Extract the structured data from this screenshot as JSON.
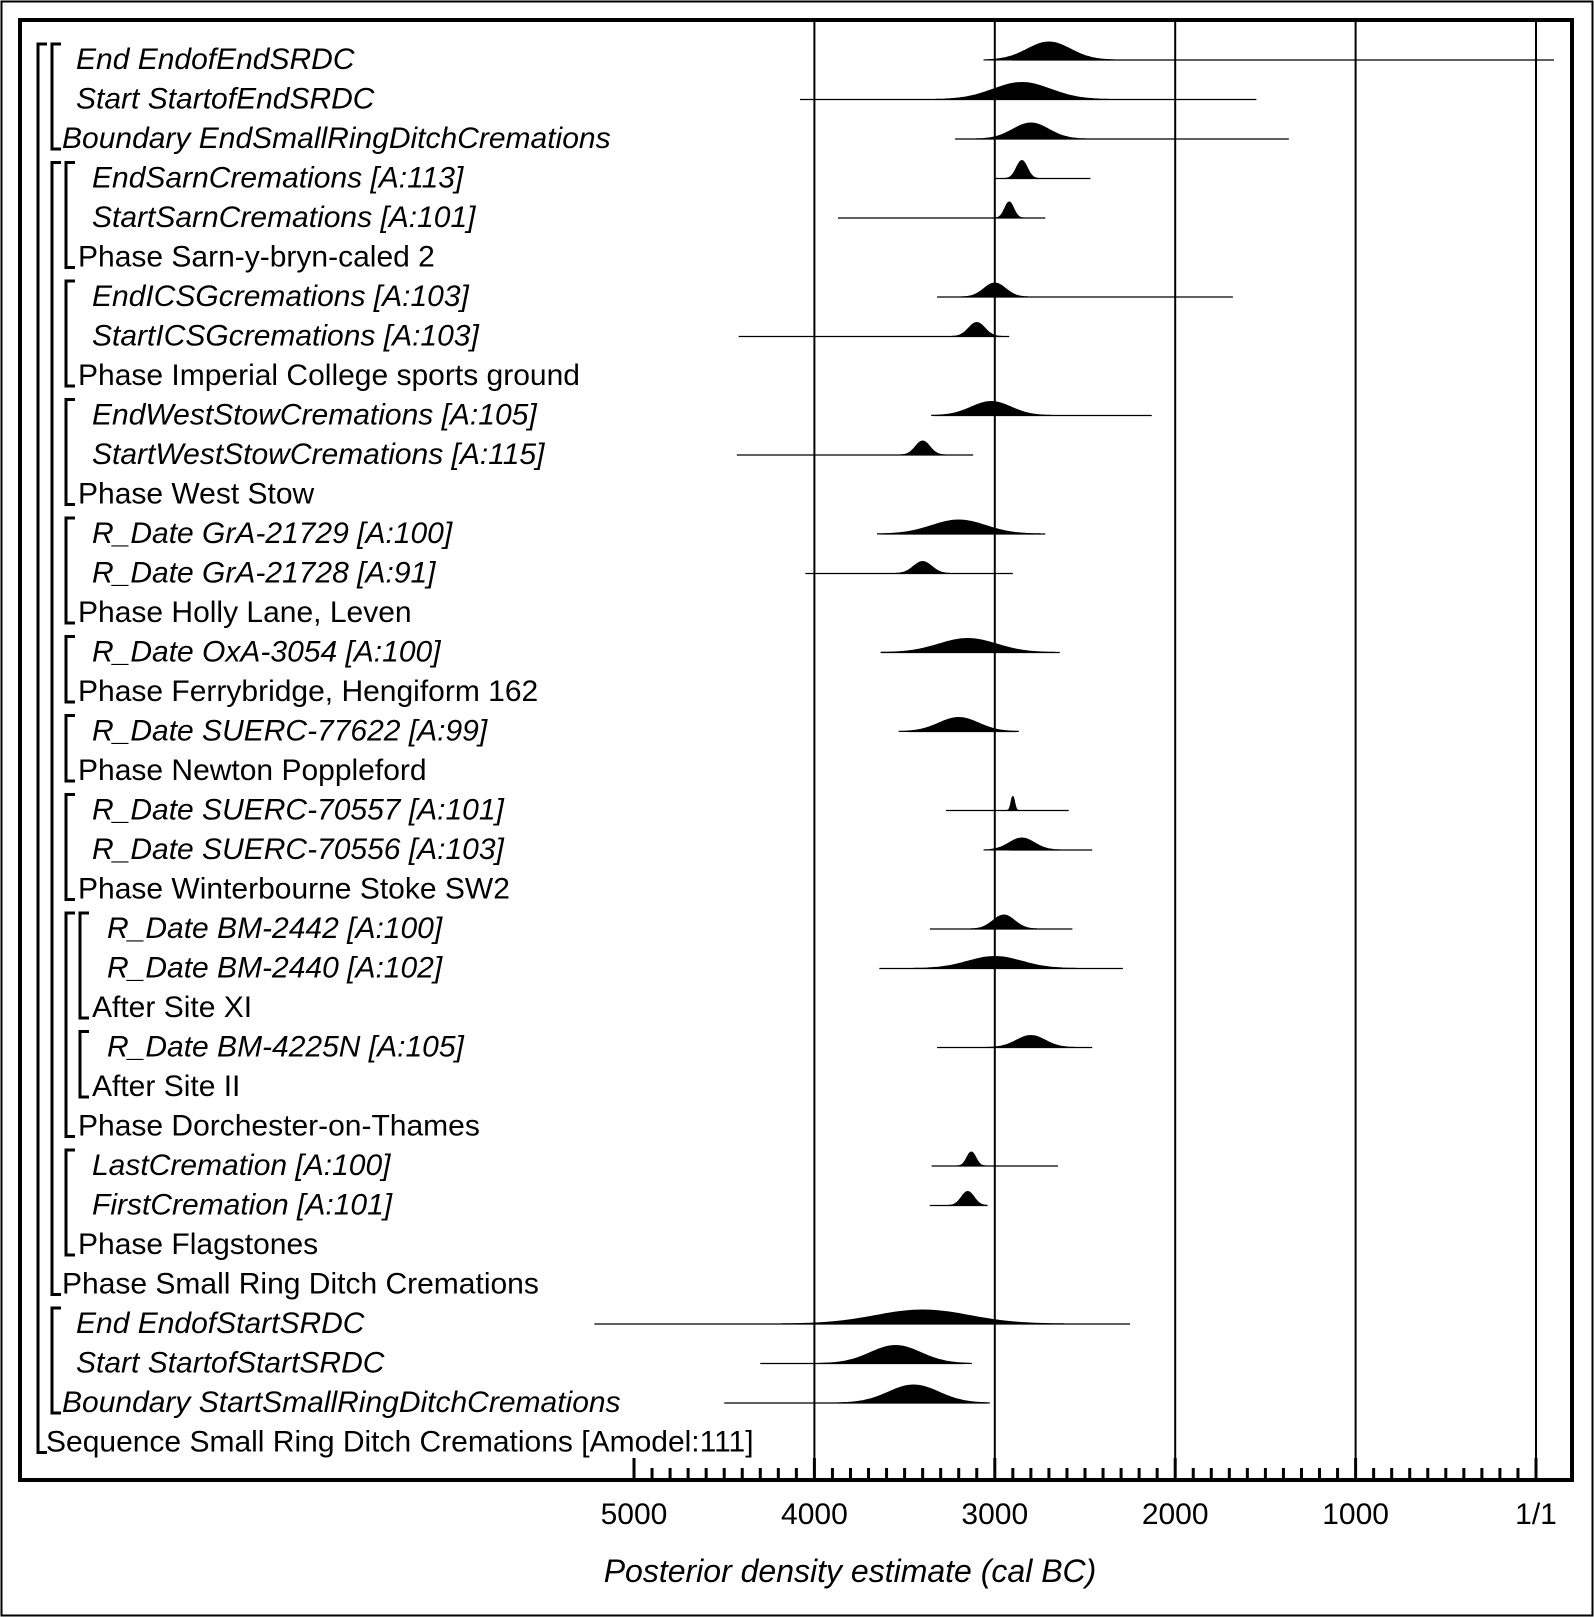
{
  "chart_data": {
    "type": "ridgeline",
    "xlabel": "Posterior density estimate (cal BC)",
    "x_ticks": [
      "5000",
      "4000",
      "3000",
      "2000",
      "1000",
      "1/1"
    ],
    "x_tick_values": [
      5000,
      4000,
      3000,
      2000,
      1000,
      0
    ],
    "xlim": [
      5000,
      0
    ],
    "grid": "vertical lines at 1000-year intervals",
    "rows": [
      {
        "label": "End EndofEndSRDC",
        "italic": true,
        "range": [
          2900,
          -100
        ],
        "peak": 2700,
        "width": 120,
        "height": 18,
        "filled": true
      },
      {
        "label": "Start StartofEndSRDC",
        "italic": true,
        "range": [
          4080,
          1550
        ],
        "peak": 2850,
        "width": 160,
        "height": 17,
        "filled": true
      },
      {
        "label": "Boundary EndSmallRingDitchCremations",
        "italic": true,
        "range": [
          3220,
          1370
        ],
        "peak": 2800,
        "width": 100,
        "height": 16,
        "filled": true
      },
      {
        "label": "EndSarnCremations [A:113]",
        "italic": true,
        "range": [
          3000,
          2470
        ],
        "peak": 2850,
        "width": 30,
        "height": 18,
        "filled": true
      },
      {
        "label": "StartSarnCremations [A:101]",
        "italic": true,
        "range": [
          3870,
          2720
        ],
        "peak": 2920,
        "width": 25,
        "height": 16,
        "filled": true
      },
      {
        "label": "Phase Sarn-y-bryn-caled 2",
        "italic": false
      },
      {
        "label": "EndICSGcremations [A:103]",
        "italic": true,
        "range": [
          3320,
          1680
        ],
        "peak": 3000,
        "width": 60,
        "height": 14,
        "filled": true
      },
      {
        "label": "StartICSGcremations [A:103]",
        "italic": true,
        "range": [
          4420,
          2920
        ],
        "peak": 3100,
        "width": 45,
        "height": 14,
        "filled": true
      },
      {
        "label": "Phase Imperial College sports ground",
        "italic": false
      },
      {
        "label": "EndWestStowCremations [A:105]",
        "italic": true,
        "range": [
          3340,
          2130
        ],
        "peak": 3020,
        "width": 110,
        "height": 14,
        "filled": true
      },
      {
        "label": "StartWestStowCremations [A:115]",
        "italic": true,
        "range": [
          4430,
          3120
        ],
        "peak": 3400,
        "width": 40,
        "height": 14,
        "filled": true
      },
      {
        "label": "Phase West Stow",
        "italic": false
      },
      {
        "label": "R_Date GrA-21729 [A:100]",
        "italic": true,
        "range": [
          3630,
          2720
        ],
        "peak": 3200,
        "width": 150,
        "height": 14,
        "filled": true
      },
      {
        "label": "R_Date GrA-21728 [A:91]",
        "italic": true,
        "range": [
          4050,
          2900
        ],
        "peak": 3400,
        "width": 50,
        "height": 12,
        "filled": true
      },
      {
        "label": "Phase Holly Lane, Leven",
        "italic": false
      },
      {
        "label": "R_Date OxA-3054 [A:100]",
        "italic": true,
        "range": [
          3630,
          2640
        ],
        "peak": 3150,
        "width": 160,
        "height": 14,
        "filled": true
      },
      {
        "label": "Phase Ferrybridge, Hengiform 162",
        "italic": false
      },
      {
        "label": "R_Date SUERC-77622 [A:99]",
        "italic": true,
        "range": [
          3480,
          2880
        ],
        "peak": 3200,
        "width": 110,
        "height": 14,
        "filled": true
      },
      {
        "label": "Phase Newton Poppleford",
        "italic": false
      },
      {
        "label": "R_Date SUERC-70557 [A:101]",
        "italic": true,
        "range": [
          3270,
          2590
        ],
        "peak": 2900,
        "width": 10,
        "height": 14,
        "filled": true
      },
      {
        "label": "R_Date SUERC-70556 [A:103]",
        "italic": true,
        "range": [
          2920,
          2460
        ],
        "peak": 2850,
        "width": 70,
        "height": 12,
        "filled": true
      },
      {
        "label": "Phase Winterbourne Stoke SW2",
        "italic": false
      },
      {
        "label": "R_Date BM-2442 [A:100]",
        "italic": true,
        "range": [
          3360,
          2570
        ],
        "peak": 2950,
        "width": 60,
        "height": 14,
        "filled": true
      },
      {
        "label": "R_Date BM-2440 [A:102]",
        "italic": true,
        "range": [
          3640,
          2290
        ],
        "peak": 3000,
        "width": 150,
        "height": 12,
        "filled": true
      },
      {
        "label": "After Site XI",
        "italic": false
      },
      {
        "label": "R_Date BM-4225N [A:105]",
        "italic": true,
        "range": [
          3320,
          2460
        ],
        "peak": 2800,
        "width": 80,
        "height": 12,
        "filled": true
      },
      {
        "label": "After Site II",
        "italic": false
      },
      {
        "label": "Phase Dorchester-on-Thames",
        "italic": false
      },
      {
        "label": "LastCremation [A:100]",
        "italic": true,
        "range": [
          3350,
          2650
        ],
        "peak": 3130,
        "width": 25,
        "height": 14,
        "filled": true
      },
      {
        "label": "FirstCremation [A:101]",
        "italic": true,
        "range": [
          3360,
          3040
        ],
        "peak": 3150,
        "width": 35,
        "height": 14,
        "filled": true
      },
      {
        "label": "Phase Flagstones",
        "italic": false
      },
      {
        "label": "Phase Small Ring Ditch Cremations",
        "italic": false
      },
      {
        "label": "End EndofStartSRDC",
        "italic": true,
        "range": [
          5220,
          2250
        ],
        "peak": 3400,
        "width": 260,
        "height": 14,
        "filled": true
      },
      {
        "label": "Start StartofStartSRDC",
        "italic": true,
        "range": [
          4300,
          3170
        ],
        "peak": 3550,
        "width": 140,
        "height": 18,
        "filled": true
      },
      {
        "label": "Boundary StartSmallRingDitchCremations",
        "italic": true,
        "range": [
          4500,
          3040
        ],
        "peak": 3450,
        "width": 140,
        "height": 18,
        "filled": true
      },
      {
        "label": "Sequence Small Ring Ditch Cremations [Amodel:111]",
        "italic": false
      }
    ]
  }
}
